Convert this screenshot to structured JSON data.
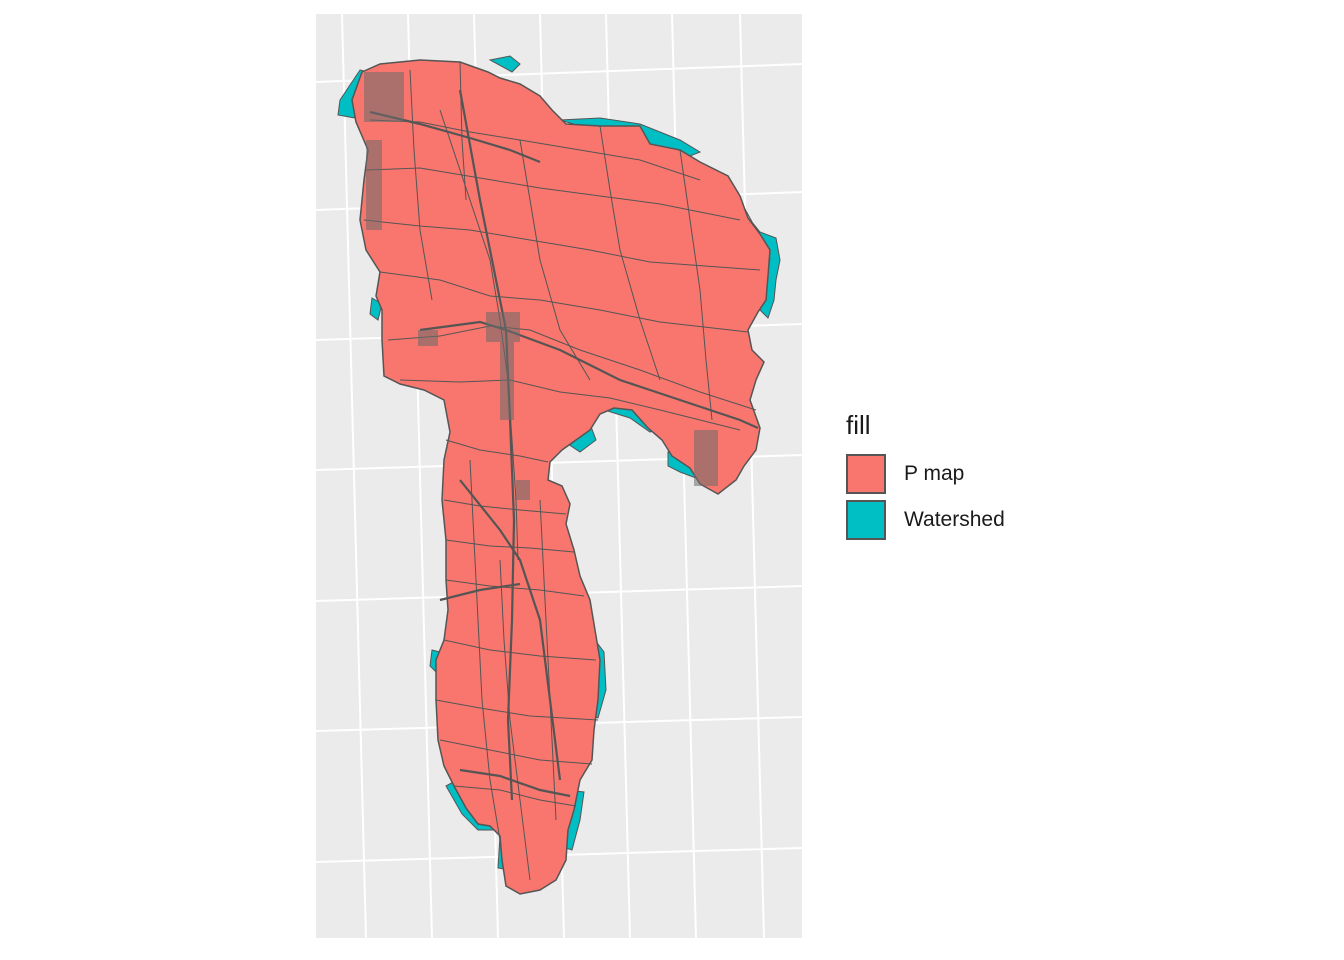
{
  "legend": {
    "title": "fill",
    "items": [
      {
        "label": "P map",
        "color": "#F8766D"
      },
      {
        "label": "Watershed",
        "color": "#00BFC4"
      }
    ]
  },
  "colors": {
    "panel_background": "#EBEBEB",
    "grid_line": "#FFFFFF",
    "parcel_border": "#555555"
  }
}
